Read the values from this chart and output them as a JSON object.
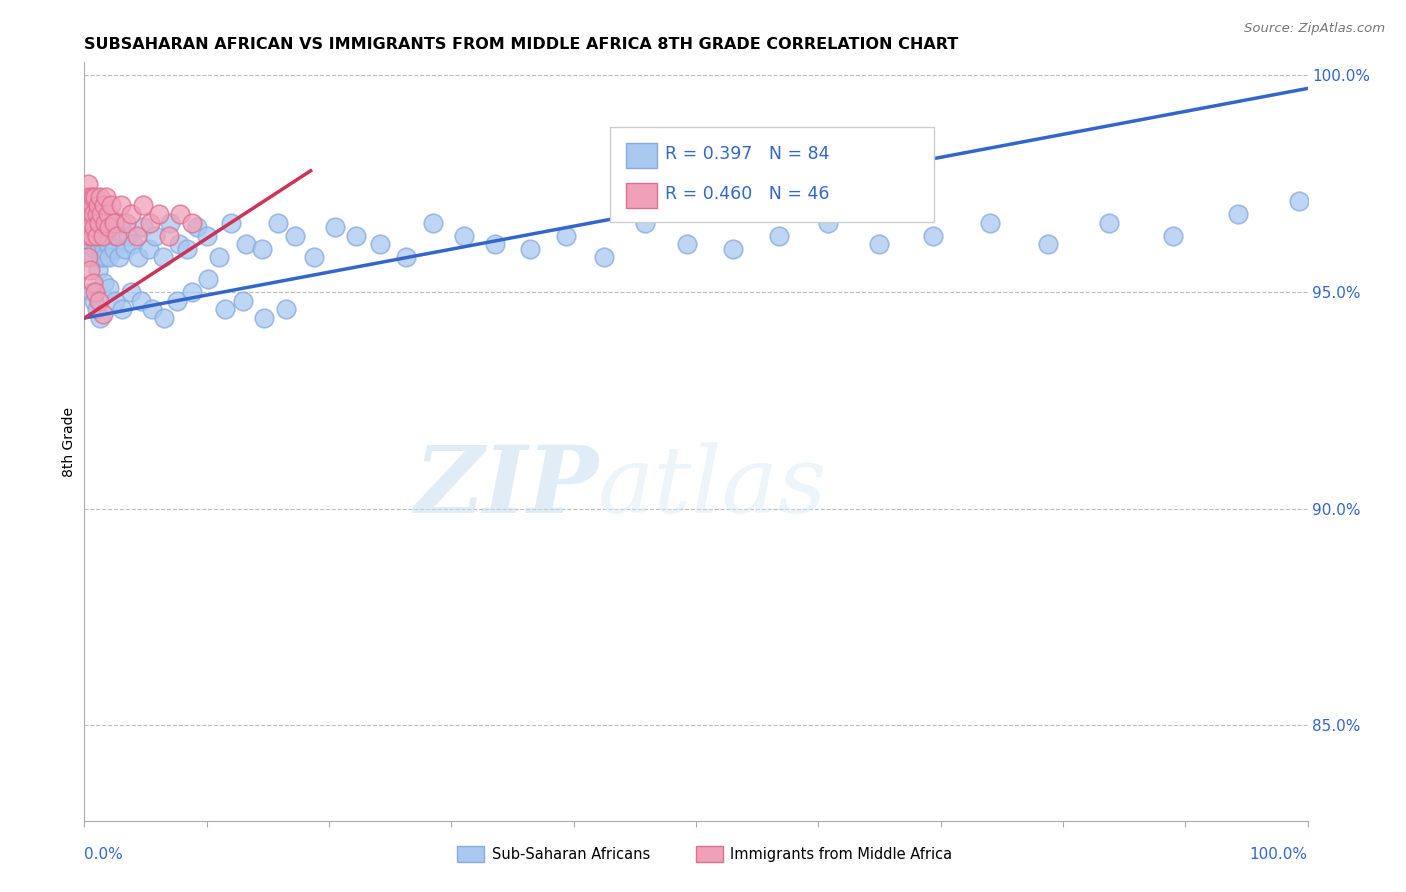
{
  "title": "SUBSAHARAN AFRICAN VS IMMIGRANTS FROM MIDDLE AFRICA 8TH GRADE CORRELATION CHART",
  "source": "Source: ZipAtlas.com",
  "ylabel": "8th Grade",
  "blue_label": "Sub-Saharan Africans",
  "pink_label": "Immigrants from Middle Africa",
  "blue_R": 0.397,
  "blue_N": 84,
  "pink_R": 0.46,
  "pink_N": 46,
  "blue_color": "#a8c8f0",
  "pink_color": "#f0a0b8",
  "blue_edge_color": "#88aadd",
  "pink_edge_color": "#dd7090",
  "blue_line_color": "#3366cc",
  "pink_line_color": "#cc3355",
  "watermark_zip": "ZIP",
  "watermark_atlas": "atlas",
  "xmin": 0.0,
  "xmax": 1.0,
  "ymin": 0.828,
  "ymax": 1.003,
  "right_ytick_vals": [
    0.85,
    0.9,
    0.95,
    1.0
  ],
  "right_ytick_labels": [
    "85.0%",
    "90.0%",
    "95.0%",
    "100.0%"
  ],
  "blue_trend_x": [
    0.0,
    1.0
  ],
  "blue_trend_y": [
    0.944,
    0.997
  ],
  "pink_trend_x": [
    0.0,
    0.185
  ],
  "pink_trend_y": [
    0.944,
    0.978
  ],
  "blue_x": [
    0.003,
    0.005,
    0.006,
    0.007,
    0.008,
    0.009,
    0.01,
    0.011,
    0.012,
    0.013,
    0.014,
    0.015,
    0.016,
    0.017,
    0.018,
    0.019,
    0.02,
    0.022,
    0.024,
    0.026,
    0.028,
    0.03,
    0.033,
    0.036,
    0.04,
    0.044,
    0.048,
    0.053,
    0.058,
    0.064,
    0.07,
    0.077,
    0.084,
    0.092,
    0.1,
    0.11,
    0.12,
    0.132,
    0.145,
    0.158,
    0.172,
    0.188,
    0.205,
    0.222,
    0.242,
    0.263,
    0.285,
    0.31,
    0.336,
    0.364,
    0.394,
    0.425,
    0.458,
    0.493,
    0.53,
    0.568,
    0.608,
    0.65,
    0.694,
    0.74,
    0.788,
    0.838,
    0.89,
    0.943,
    0.993,
    0.006,
    0.008,
    0.01,
    0.013,
    0.016,
    0.02,
    0.025,
    0.031,
    0.038,
    0.046,
    0.055,
    0.065,
    0.076,
    0.088,
    0.101,
    0.115,
    0.13,
    0.147,
    0.165
  ],
  "blue_y": [
    0.966,
    0.962,
    0.968,
    0.958,
    0.963,
    0.96,
    0.966,
    0.955,
    0.961,
    0.963,
    0.958,
    0.965,
    0.96,
    0.958,
    0.963,
    0.961,
    0.958,
    0.965,
    0.96,
    0.963,
    0.958,
    0.966,
    0.96,
    0.963,
    0.961,
    0.958,
    0.965,
    0.96,
    0.963,
    0.958,
    0.966,
    0.961,
    0.96,
    0.965,
    0.963,
    0.958,
    0.966,
    0.961,
    0.96,
    0.966,
    0.963,
    0.958,
    0.965,
    0.963,
    0.961,
    0.958,
    0.966,
    0.963,
    0.961,
    0.96,
    0.963,
    0.958,
    0.966,
    0.961,
    0.96,
    0.963,
    0.966,
    0.961,
    0.963,
    0.966,
    0.961,
    0.966,
    0.963,
    0.968,
    0.971,
    0.95,
    0.948,
    0.946,
    0.944,
    0.952,
    0.951,
    0.948,
    0.946,
    0.95,
    0.948,
    0.946,
    0.944,
    0.948,
    0.95,
    0.953,
    0.946,
    0.948,
    0.944,
    0.946
  ],
  "pink_x": [
    0.001,
    0.002,
    0.002,
    0.003,
    0.003,
    0.004,
    0.004,
    0.005,
    0.005,
    0.006,
    0.006,
    0.007,
    0.007,
    0.008,
    0.009,
    0.01,
    0.01,
    0.011,
    0.012,
    0.013,
    0.014,
    0.015,
    0.016,
    0.017,
    0.018,
    0.019,
    0.02,
    0.022,
    0.024,
    0.027,
    0.03,
    0.034,
    0.038,
    0.043,
    0.048,
    0.054,
    0.061,
    0.069,
    0.078,
    0.088,
    0.003,
    0.005,
    0.007,
    0.009,
    0.012,
    0.015
  ],
  "pink_y": [
    0.972,
    0.97,
    0.965,
    0.975,
    0.968,
    0.97,
    0.963,
    0.972,
    0.965,
    0.97,
    0.963,
    0.972,
    0.968,
    0.965,
    0.972,
    0.968,
    0.963,
    0.97,
    0.966,
    0.972,
    0.968,
    0.963,
    0.97,
    0.966,
    0.972,
    0.968,
    0.965,
    0.97,
    0.966,
    0.963,
    0.97,
    0.966,
    0.968,
    0.963,
    0.97,
    0.966,
    0.968,
    0.963,
    0.968,
    0.966,
    0.958,
    0.955,
    0.952,
    0.95,
    0.948,
    0.945
  ]
}
